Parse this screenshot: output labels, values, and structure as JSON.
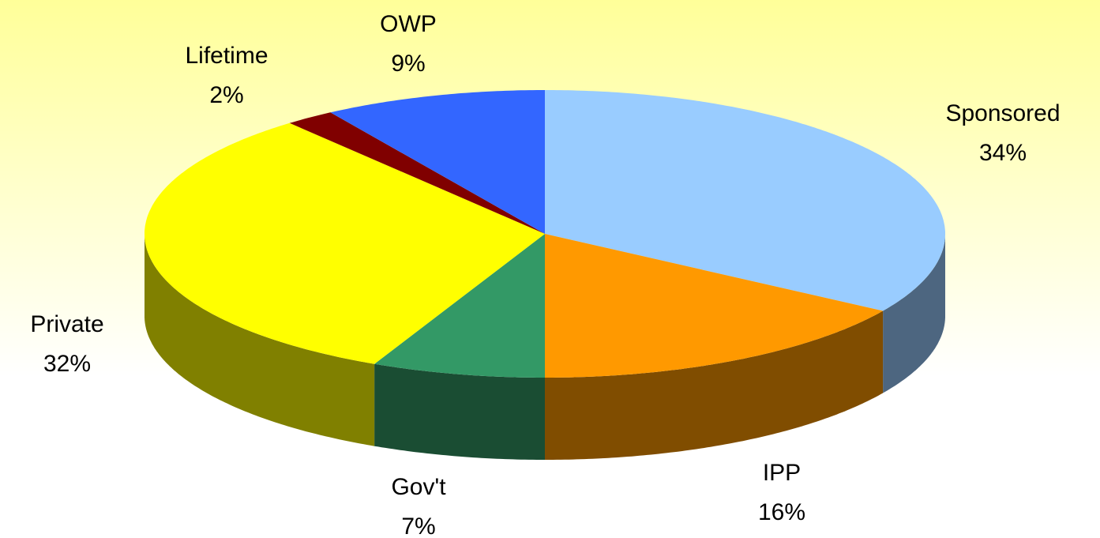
{
  "chart_data": {
    "type": "pie",
    "categories": [
      "Sponsored",
      "IPP",
      "Gov't",
      "Private",
      "Lifetime",
      "OWP"
    ],
    "values": [
      34,
      16,
      7,
      32,
      2,
      9
    ],
    "value_labels": [
      "34%",
      "16%",
      "7%",
      "32%",
      "2%",
      "9%"
    ],
    "colors": [
      "#99ccff",
      "#ff9900",
      "#339966",
      "#ffff00",
      "#800000",
      "#3366ff"
    ]
  }
}
